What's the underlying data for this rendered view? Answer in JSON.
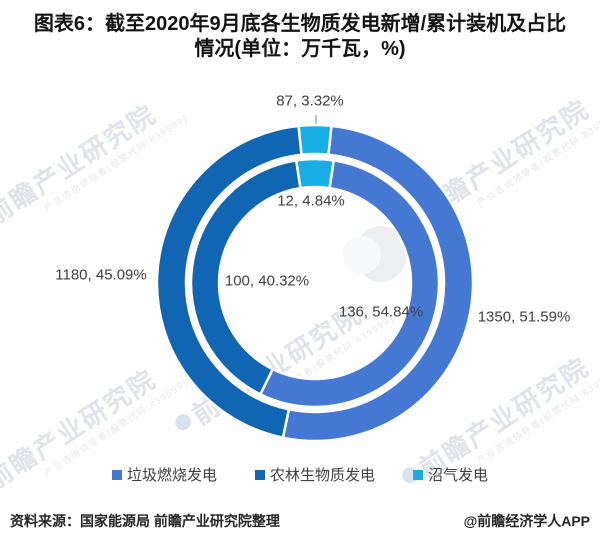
{
  "title": {
    "line1": "图表6：截至2020年9月底各生物质发电新增/累计装机及占比",
    "line2": "情况(单位：万千瓦，%)"
  },
  "chart_data": {
    "type": "pie",
    "subtype": "double-ring-donut",
    "categories": [
      "垃圾燃烧发电",
      "农林生物质发电",
      "沼气发电"
    ],
    "colors": [
      "#4478d3",
      "#1066b2",
      "#18ade4"
    ],
    "rings": [
      {
        "name": "累计装机 (outer ring)",
        "values": [
          1350,
          1180,
          87
        ],
        "percents": [
          51.59,
          45.09,
          3.32
        ]
      },
      {
        "name": "新增装机 (inner ring)",
        "values": [
          136,
          100,
          12
        ],
        "percents": [
          54.84,
          40.32,
          4.84
        ]
      }
    ],
    "labels": {
      "outer_waste": "1350, 51.59%",
      "outer_agri": "1180, 45.09%",
      "outer_biogas": "87, 3.32%",
      "inner_waste": "136, 54.84%",
      "inner_agri": "100, 40.32%",
      "inner_biogas": "12, 4.84%"
    },
    "legend": [
      {
        "label": "垃圾燃烧发电",
        "color": "#4478d3"
      },
      {
        "label": "农林生物质发电",
        "color": "#1066b2"
      },
      {
        "label": "沼气发电",
        "color": "#18ade4"
      }
    ],
    "legend_position": "bottom",
    "unit": "万千瓦，%"
  },
  "watermark": {
    "text": "前瞻产业研究院",
    "subtext": "产业咨询领导者(股票代码:839599)"
  },
  "footer": {
    "source": "资料来源：国家能源局 前瞻产业研究院整理",
    "credit": "@前瞻经济学人APP"
  }
}
